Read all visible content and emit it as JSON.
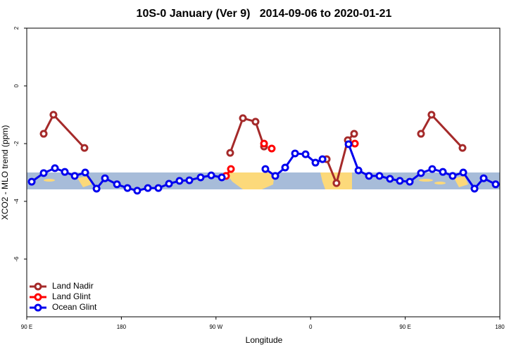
{
  "chart_data": {
    "type": "line",
    "title": "10S-0 January (Ver 9)   2014-09-06 to 2020-01-21",
    "x_label": "Longitude",
    "y_label": "XCO2 - MLO trend (ppm)",
    "xlim": [
      90,
      540
    ],
    "ylim": [
      -8,
      2
    ],
    "xticks": [
      {
        "value": 90,
        "label": "90 E"
      },
      180,
      {
        "value": 270,
        "label": "90 W"
      },
      {
        "value": 360,
        "label": "0"
      },
      {
        "value": 450,
        "label": "90 E"
      },
      {
        "value": 540,
        "label": "180"
      }
    ],
    "yticks": [
      2,
      0,
      -2,
      -4,
      -6
    ],
    "legend": "bottom-left",
    "series": [
      {
        "name": "Land Nadir",
        "color": "#a52a2a",
        "x": [
          106.1,
          115.4,
          144.9,
          null,
          283.5,
          295.6,
          307.6,
          315.7,
          null,
          375.3,
          384.6,
          395.4,
          401.4,
          null,
          465,
          475,
          504.5
        ],
        "values": [
          -1.66,
          -1.0,
          -2.15,
          null,
          -2.32,
          -1.12,
          -1.24,
          -2.1,
          null,
          -2.54,
          -3.37,
          -1.88,
          -1.66,
          null,
          -1.66,
          -1.0,
          -2.15
        ]
      },
      {
        "name": "Land Glint",
        "color": "#ff0000",
        "x": [
          279.5,
          284.2,
          null,
          315.7,
          null,
          323,
          null,
          402.1
        ],
        "values": [
          -3.12,
          -2.88,
          null,
          -2.0,
          null,
          -2.17,
          null,
          -2.0
        ]
      },
      {
        "name": "Ocean Glint",
        "color": "#0000ee",
        "x": [
          94.7,
          106.1,
          116.8,
          126.2,
          135.6,
          145.6,
          156.4,
          164.4,
          175.8,
          185.8,
          195.1,
          205.2,
          215.2,
          225.3,
          235.3,
          244.7,
          255.4,
          265.5,
          275.5,
          null,
          317,
          326.4,
          335.8,
          345.2,
          355.2,
          364.6,
          371.3,
          null,
          396.1,
          405.5,
          415.5,
          425.5,
          435.5,
          444.9,
          454.3,
          465,
          475.7,
          485.8,
          495.1,
          505.2,
          515.9,
          524.6,
          536
        ],
        "values": [
          -3.32,
          -3.02,
          -2.85,
          -2.98,
          -3.12,
          -3.0,
          -3.56,
          -3.2,
          -3.41,
          -3.54,
          -3.63,
          -3.54,
          -3.54,
          -3.39,
          -3.29,
          -3.27,
          -3.17,
          -3.1,
          -3.17,
          null,
          -2.88,
          -3.12,
          -2.83,
          -2.34,
          -2.37,
          -2.66,
          -2.54,
          null,
          -2.02,
          -2.93,
          -3.12,
          -3.12,
          -3.22,
          -3.29,
          -3.32,
          -3.02,
          -2.88,
          -2.98,
          -3.12,
          -3.0,
          -3.56,
          -3.2,
          -3.41
        ]
      }
    ]
  }
}
